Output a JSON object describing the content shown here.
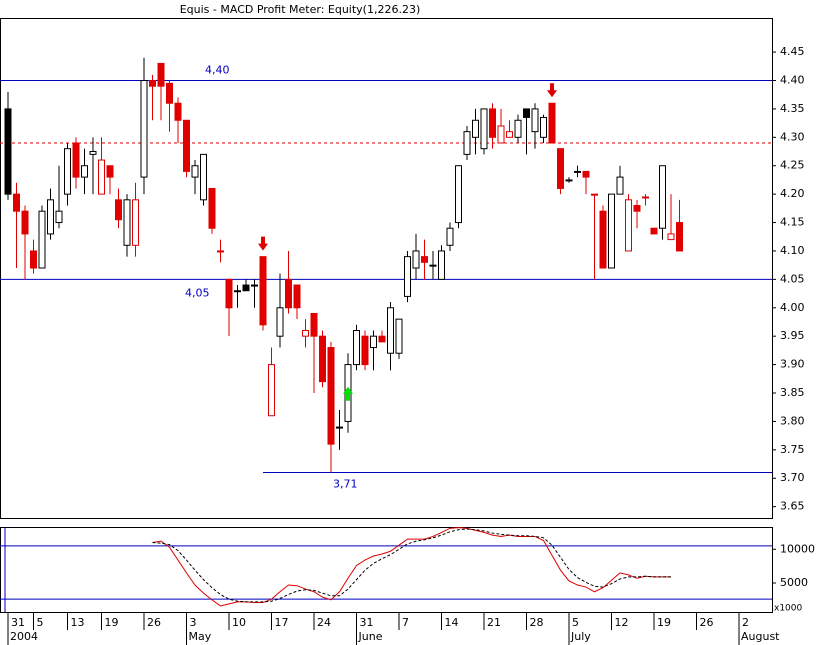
{
  "chart_data": [
    {
      "type": "candlestick",
      "title": "Equis - MACD Profit Meter: Equity(1,226.23)",
      "categories": [
        "31",
        null,
        null,
        "5",
        null,
        null,
        null,
        "13",
        null,
        null,
        null,
        "19",
        null,
        null,
        null,
        null,
        "26",
        null,
        null,
        null,
        null,
        "3",
        null,
        null,
        null,
        null,
        "10",
        null,
        null,
        null,
        null,
        "17",
        null,
        null,
        null,
        null,
        "24",
        null,
        null,
        null,
        null,
        "31",
        null,
        null,
        null,
        null,
        "7",
        null,
        null,
        null,
        null,
        "14",
        null,
        null,
        null,
        null,
        "21",
        null,
        null,
        null,
        null,
        "28",
        null,
        null,
        null,
        null,
        "5",
        null,
        null,
        null,
        null,
        "12",
        null,
        null,
        null,
        null,
        "19",
        null,
        null,
        null,
        null,
        "26",
        null,
        null,
        null,
        null,
        "2",
        null,
        null,
        null
      ],
      "months": [
        "2004",
        null,
        null,
        null,
        null,
        null,
        null,
        null,
        null,
        null,
        null,
        null,
        null,
        null,
        null,
        null,
        null,
        null,
        null,
        null,
        null,
        "May",
        null,
        null,
        null,
        null,
        null,
        null,
        null,
        null,
        null,
        null,
        null,
        null,
        null,
        null,
        null,
        null,
        null,
        null,
        null,
        "June",
        null,
        null,
        null,
        null,
        null,
        null,
        null,
        null,
        null,
        null,
        null,
        null,
        null,
        null,
        null,
        null,
        null,
        null,
        null,
        null,
        null,
        null,
        null,
        null,
        "July",
        null,
        null,
        null,
        null,
        null,
        null,
        null,
        null,
        null,
        null,
        null,
        null,
        null,
        null,
        null,
        null,
        null,
        null,
        null,
        "August",
        null,
        null,
        null
      ],
      "open": [
        4.35,
        4.2,
        4.17,
        4.1,
        4.07,
        4.13,
        4.15,
        4.2,
        4.29,
        4.23,
        4.27,
        4.2,
        4.25,
        4.19,
        4.11,
        4.11,
        4.23,
        4.4,
        4.43,
        4.395,
        4.36,
        4.33,
        4.23,
        4.19,
        4.21,
        4.1,
        4.05,
        4.03,
        4.04,
        4.04,
        4.09,
        3.81,
        3.95,
        4.05,
        4.04,
        3.95,
        3.99,
        3.95,
        3.93,
        3.79,
        3.8,
        3.9,
        3.95,
        3.93,
        3.95,
        3.92,
        3.92,
        4.02,
        4.07,
        4.09,
        4.075,
        4.05,
        4.11,
        4.15,
        4.27,
        4.3,
        4.28,
        4.35,
        4.29,
        4.3,
        4.3,
        4.35,
        4.31,
        4.3,
        4.36,
        4.28,
        4.225,
        4.24,
        4.24,
        4.2,
        4.17,
        4.07,
        4.2,
        4.1,
        4.18,
        4.195,
        4.14,
        4.14,
        4.12,
        4.15,
        null,
        null,
        null,
        null,
        null,
        null,
        null,
        null,
        null,
        null
      ],
      "high": [
        4.38,
        4.22,
        4.18,
        4.12,
        4.18,
        4.21,
        4.25,
        4.29,
        4.3,
        4.28,
        4.3,
        4.3,
        4.25,
        4.21,
        4.2,
        4.22,
        4.44,
        4.41,
        4.43,
        4.4,
        4.37,
        4.33,
        4.26,
        4.27,
        4.21,
        4.12,
        4.05,
        4.04,
        4.05,
        4.05,
        4.09,
        3.93,
        4.06,
        4.1,
        4.04,
        3.98,
        3.99,
        3.96,
        3.94,
        3.82,
        3.92,
        3.97,
        3.96,
        3.96,
        3.96,
        4.01,
        3.98,
        4.1,
        4.13,
        4.12,
        4.1,
        4.11,
        4.15,
        4.25,
        4.32,
        4.35,
        4.35,
        4.36,
        4.35,
        4.33,
        4.34,
        4.35,
        4.36,
        4.34,
        4.36,
        4.28,
        4.23,
        4.25,
        4.24,
        4.2,
        4.18,
        4.2,
        4.25,
        4.2,
        4.19,
        4.2,
        4.14,
        4.25,
        4.2,
        4.19,
        null,
        null,
        null,
        null,
        null,
        null,
        null,
        null,
        null,
        null
      ],
      "low": [
        4.19,
        4.07,
        4.05,
        4.06,
        4.07,
        4.12,
        4.14,
        4.18,
        4.21,
        4.2,
        4.2,
        4.2,
        4.2,
        4.14,
        4.09,
        4.09,
        4.2,
        4.33,
        4.33,
        4.31,
        4.29,
        4.23,
        4.2,
        4.18,
        4.13,
        4.08,
        3.95,
        4.0,
        4.03,
        4.0,
        3.96,
        3.81,
        3.93,
        3.99,
        3.98,
        3.93,
        3.85,
        3.86,
        3.71,
        3.75,
        3.78,
        3.89,
        3.89,
        3.89,
        3.94,
        3.89,
        3.91,
        4.01,
        4.05,
        4.05,
        4.05,
        4.05,
        4.1,
        4.14,
        4.26,
        4.27,
        4.27,
        4.28,
        4.29,
        4.3,
        4.29,
        4.27,
        4.28,
        4.29,
        4.29,
        4.2,
        4.22,
        4.23,
        4.2,
        4.05,
        4.07,
        4.07,
        4.2,
        4.1,
        4.14,
        4.18,
        4.13,
        4.12,
        4.12,
        4.1,
        null,
        null,
        null,
        null,
        null,
        null,
        null,
        null,
        null,
        null
      ],
      "close": [
        4.2,
        4.17,
        4.13,
        4.07,
        4.17,
        4.19,
        4.17,
        4.28,
        4.23,
        4.25,
        4.275,
        4.26,
        4.23,
        4.155,
        4.19,
        4.19,
        4.4,
        4.39,
        4.39,
        4.36,
        4.33,
        4.24,
        4.25,
        4.27,
        4.14,
        4.1,
        4.0,
        4.03,
        4.03,
        4.04,
        3.97,
        3.9,
        4.0,
        4.0,
        4.0,
        3.96,
        3.95,
        3.87,
        3.76,
        3.79,
        3.9,
        3.96,
        3.9,
        3.95,
        3.94,
        4.0,
        3.98,
        4.09,
        4.1,
        4.08,
        4.075,
        4.1,
        4.14,
        4.25,
        4.31,
        4.33,
        4.35,
        4.3,
        4.32,
        4.31,
        4.33,
        4.335,
        4.35,
        4.335,
        4.29,
        4.21,
        4.225,
        4.24,
        4.23,
        4.2,
        4.07,
        4.2,
        4.23,
        4.19,
        4.17,
        4.195,
        4.13,
        4.25,
        4.13,
        4.1,
        null,
        null,
        null,
        null,
        null,
        null,
        null,
        null,
        null,
        null
      ],
      "colors": [
        "#000000",
        "#e00000",
        "#e00000",
        "#e00000",
        "#000000",
        "#000000",
        "#000000",
        "#000000",
        "#e00000",
        "#000000",
        "#000000",
        "#e00000",
        "#e00000",
        "#e00000",
        "#000000",
        "#e00000",
        "#000000",
        "#e00000",
        "#e00000",
        "#e00000",
        "#e00000",
        "#e00000",
        "#000000",
        "#000000",
        "#e00000",
        "#e00000",
        "#e00000",
        "#000000",
        "#000000",
        "#000000",
        "#e00000",
        "#e00000",
        "#000000",
        "#e00000",
        "#e00000",
        "#e00000",
        "#e00000",
        "#e00000",
        "#e00000",
        "#000000",
        "#000000",
        "#000000",
        "#e00000",
        "#000000",
        "#e00000",
        "#000000",
        "#000000",
        "#000000",
        "#000000",
        "#e00000",
        "#000000",
        "#000000",
        "#000000",
        "#000000",
        "#000000",
        "#000000",
        "#000000",
        "#e00000",
        "#e00000",
        "#e00000",
        "#000000",
        "#000000",
        "#000000",
        "#000000",
        "#e00000",
        "#e00000",
        "#000000",
        "#000000",
        "#e00000",
        "#e00000",
        "#e00000",
        "#000000",
        "#000000",
        "#e00000",
        "#e00000",
        "#e00000",
        "#e00000",
        "#000000",
        "#e00000",
        "#e00000",
        null,
        null,
        null,
        null,
        null,
        null,
        null,
        null,
        null,
        null
      ],
      "levels": [
        {
          "value": 4.4,
          "label": "4,40",
          "color": "#0000c0",
          "from": 0
        },
        {
          "value": 4.05,
          "label": "4,05",
          "color": "#0000c0",
          "from": 0
        },
        {
          "value": 3.71,
          "label": "3,71",
          "color": "#0000c0",
          "from": 30
        },
        {
          "value": 4.29,
          "color": "#e00000",
          "from": 0,
          "dashed": true
        }
      ],
      "signals": [
        {
          "index": 30,
          "kind": "sell",
          "color": "#e00000"
        },
        {
          "index": 64,
          "kind": "sell",
          "color": "#e00000"
        },
        {
          "index": 40,
          "kind": "buy",
          "color": "#00e000"
        }
      ],
      "ylim": [
        3.63,
        4.51
      ],
      "yticks": [
        3.65,
        {
          "value": 3.7,
          "label": "3.70"
        },
        3.75,
        {
          "value": 3.8,
          "label": "3.80"
        },
        3.85,
        {
          "value": 3.9,
          "label": "3.90"
        },
        3.95,
        {
          "value": 4.0,
          "label": "4.00"
        },
        4.05,
        {
          "value": 4.1,
          "label": "4.10"
        },
        4.15,
        {
          "value": 4.2,
          "label": "4.20"
        },
        4.25,
        {
          "value": 4.3,
          "label": "4.30"
        },
        4.35,
        {
          "value": 4.4,
          "label": "4.40"
        },
        4.45
      ]
    },
    {
      "type": "line",
      "series": [
        {
          "color": "#e00000",
          "dashed": false,
          "values": [
            null,
            null,
            null,
            null,
            null,
            null,
            null,
            null,
            null,
            null,
            null,
            null,
            null,
            null,
            null,
            null,
            null,
            11000,
            11200,
            10300,
            8400,
            6500,
            4700,
            3500,
            2500,
            1600,
            1900,
            2200,
            2200,
            2100,
            2100,
            2600,
            3700,
            4700,
            4600,
            4100,
            3700,
            2900,
            2500,
            3700,
            5700,
            7600,
            8400,
            9000,
            9300,
            9700,
            10600,
            11500,
            11500,
            11500,
            11900,
            12500,
            13100,
            13200,
            13100,
            12800,
            12500,
            12100,
            11900,
            12100,
            11900,
            11900,
            11900,
            11300,
            9100,
            6900,
            5300,
            4700,
            4400,
            3700,
            4300,
            5400,
            6500,
            6200,
            5700,
            6000,
            5900,
            5900,
            5900,
            null,
            null,
            null,
            null,
            null,
            null,
            null,
            null,
            null,
            null,
            null
          ]
        },
        {
          "color": "#000000",
          "dashed": true,
          "values": [
            null,
            null,
            null,
            null,
            null,
            null,
            null,
            null,
            null,
            null,
            null,
            null,
            null,
            null,
            null,
            null,
            null,
            11000,
            10900,
            10700,
            9800,
            8400,
            6900,
            5500,
            4300,
            3300,
            2600,
            2300,
            2200,
            2200,
            2200,
            2300,
            2700,
            3300,
            3800,
            4000,
            3900,
            3500,
            3100,
            3100,
            4100,
            5500,
            6900,
            7900,
            8600,
            9200,
            10000,
            10800,
            11200,
            11400,
            11700,
            12100,
            12600,
            12900,
            13000,
            12900,
            12700,
            12400,
            12200,
            12100,
            12000,
            12000,
            11900,
            11700,
            10600,
            8800,
            7000,
            5800,
            5100,
            4500,
            4400,
            4900,
            5600,
            5900,
            5900,
            6000,
            5900,
            5900,
            5900,
            null,
            null,
            null,
            null,
            null,
            null,
            null,
            null,
            null,
            null,
            null
          ]
        }
      ],
      "levels": [
        {
          "value": 10500,
          "color": "#0000c0"
        },
        {
          "value": 2600,
          "color": "#0000c0"
        }
      ],
      "unit_label": "x1000",
      "ylim": [
        700,
        13300
      ],
      "yticks": [
        5000,
        10000
      ]
    }
  ]
}
